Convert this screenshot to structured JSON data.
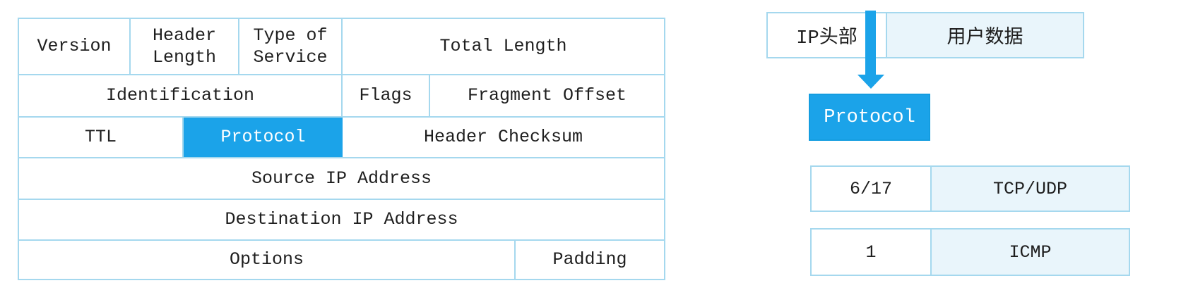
{
  "colors": {
    "highlight_blue": "#1ba3e9",
    "light_blue_fill": "#e9f5fb",
    "border_blue": "#a5d8ee",
    "text": "#1e1e1e"
  },
  "ip_header_table": {
    "row1": {
      "version": "Version",
      "header_length": "Header Length",
      "type_of_service": "Type of Service",
      "total_length": "Total Length"
    },
    "row2": {
      "identification": "Identification",
      "flags": "Flags",
      "fragment_offset": "Fragment Offset"
    },
    "row3": {
      "ttl": "TTL",
      "protocol": "Protocol",
      "header_checksum": "Header Checksum"
    },
    "row4": {
      "source_ip": "Source IP Address"
    },
    "row5": {
      "destination_ip": "Destination IP Address"
    },
    "row6": {
      "options": "Options",
      "padding": "Padding"
    }
  },
  "packet_bar": {
    "ip_header": "IP头部",
    "user_data": "用户数据"
  },
  "protocol_box": {
    "label": "Protocol"
  },
  "protocol_mappings": [
    {
      "value": "6/17",
      "protocol": "TCP/UDP"
    },
    {
      "value": "1",
      "protocol": "ICMP"
    }
  ]
}
